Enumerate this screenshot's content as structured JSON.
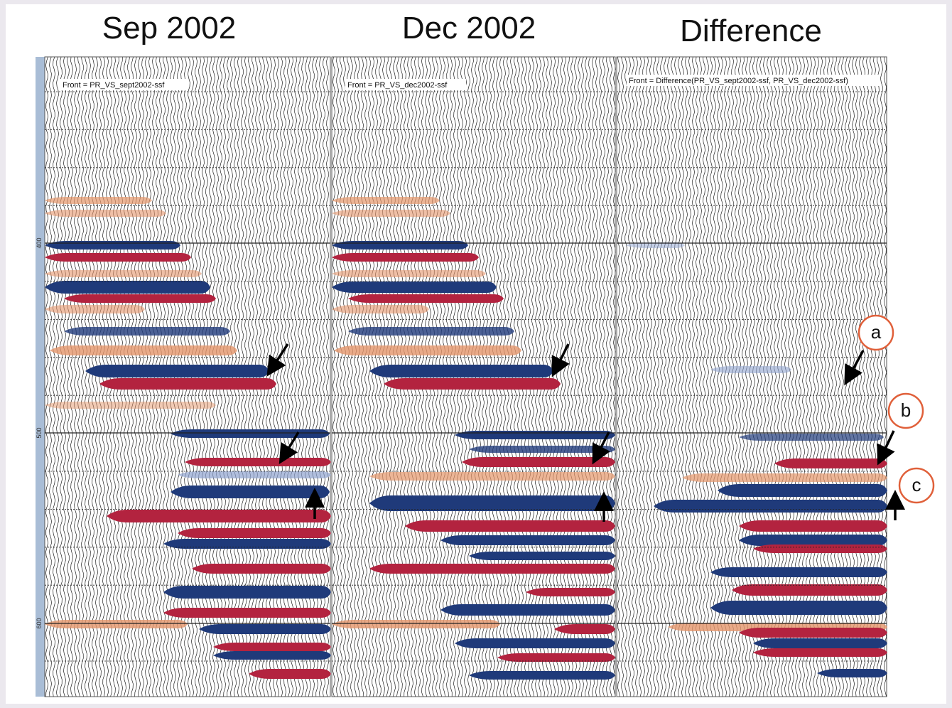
{
  "panels": [
    {
      "title": "Sep 2002",
      "front_label": "Front = PR_VS_sept2002-ssf"
    },
    {
      "title": "Dec 2002",
      "front_label": "Front = PR_VS_dec2002-ssf"
    },
    {
      "title": "Difference",
      "front_label": "Front = Difference(PR_VS_sept2002-ssf, PR_VS_dec2002-ssf)"
    }
  ],
  "depth_labels": [
    "400",
    "500",
    "600"
  ],
  "annotations": [
    "a",
    "b",
    "c"
  ]
}
